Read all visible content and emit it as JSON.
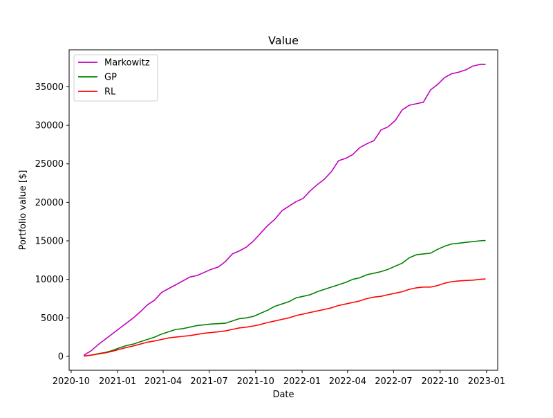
{
  "chart_data": {
    "type": "line",
    "title": "Value",
    "xlabel": "Date",
    "ylabel": "Portfolio value [$]",
    "x_ticks": [
      "2020-10",
      "2021-01",
      "2021-04",
      "2021-07",
      "2021-10",
      "2022-01",
      "2022-04",
      "2022-07",
      "2022-10",
      "2023-01"
    ],
    "y_ticks": [
      0,
      5000,
      10000,
      15000,
      20000,
      25000,
      30000,
      35000
    ],
    "xlim": [
      "2020-09-27",
      "2023-01-23"
    ],
    "ylim": [
      -1800,
      39800
    ],
    "grid": false,
    "legend_position": "top-left",
    "series": [
      {
        "name": "Markowitz",
        "color": "#bf00bf",
        "x": [
          "2020-10-26",
          "2020-11-09",
          "2020-11-23",
          "2020-12-07",
          "2020-12-21",
          "2021-01-04",
          "2021-01-18",
          "2021-02-01",
          "2021-02-15",
          "2021-03-01",
          "2021-03-15",
          "2021-03-29",
          "2021-04-12",
          "2021-04-26",
          "2021-05-10",
          "2021-05-24",
          "2021-06-07",
          "2021-06-21",
          "2021-07-05",
          "2021-07-19",
          "2021-08-02",
          "2021-08-16",
          "2021-08-30",
          "2021-09-13",
          "2021-09-27",
          "2021-10-11",
          "2021-10-25",
          "2021-11-08",
          "2021-11-22",
          "2021-12-06",
          "2021-12-20",
          "2022-01-03",
          "2022-01-17",
          "2022-01-31",
          "2022-02-14",
          "2022-02-28",
          "2022-03-14",
          "2022-03-28",
          "2022-04-11",
          "2022-04-25",
          "2022-05-09",
          "2022-05-23",
          "2022-06-06",
          "2022-06-20",
          "2022-07-04",
          "2022-07-18",
          "2022-08-01",
          "2022-08-15",
          "2022-08-29",
          "2022-09-12",
          "2022-09-26",
          "2022-10-10",
          "2022-10-24",
          "2022-11-07",
          "2022-11-21",
          "2022-12-05",
          "2022-12-19",
          "2022-12-30"
        ],
        "y": [
          150,
          700,
          1500,
          2200,
          2900,
          3600,
          4300,
          5000,
          5800,
          6700,
          7300,
          8300,
          8800,
          9300,
          9800,
          10300,
          10500,
          10900,
          11300,
          11600,
          12300,
          13300,
          13700,
          14200,
          15000,
          16000,
          17000,
          17800,
          18900,
          19500,
          20100,
          20500,
          21500,
          22300,
          23000,
          24000,
          25400,
          25700,
          26200,
          27100,
          27600,
          28000,
          29400,
          29800,
          30600,
          32000,
          32600,
          32800,
          33000,
          34600,
          35300,
          36200,
          36700,
          36900,
          37200,
          37700,
          37900,
          37900
        ]
      },
      {
        "name": "GP",
        "color": "#008000",
        "x": [
          "2020-10-26",
          "2020-11-09",
          "2020-11-23",
          "2020-12-07",
          "2020-12-21",
          "2021-01-04",
          "2021-01-18",
          "2021-02-01",
          "2021-02-15",
          "2021-03-01",
          "2021-03-15",
          "2021-03-29",
          "2021-04-12",
          "2021-04-26",
          "2021-05-10",
          "2021-05-24",
          "2021-06-07",
          "2021-06-21",
          "2021-07-05",
          "2021-07-19",
          "2021-08-02",
          "2021-08-16",
          "2021-08-30",
          "2021-09-13",
          "2021-09-27",
          "2021-10-11",
          "2021-10-25",
          "2021-11-08",
          "2021-11-22",
          "2021-12-06",
          "2021-12-20",
          "2022-01-03",
          "2022-01-17",
          "2022-01-31",
          "2022-02-14",
          "2022-02-28",
          "2022-03-14",
          "2022-03-28",
          "2022-04-11",
          "2022-04-25",
          "2022-05-09",
          "2022-05-23",
          "2022-06-06",
          "2022-06-20",
          "2022-07-04",
          "2022-07-18",
          "2022-08-01",
          "2022-08-15",
          "2022-08-29",
          "2022-09-12",
          "2022-09-26",
          "2022-10-10",
          "2022-10-24",
          "2022-11-07",
          "2022-11-21",
          "2022-12-05",
          "2022-12-19",
          "2022-12-30"
        ],
        "y": [
          50,
          150,
          350,
          500,
          750,
          1100,
          1400,
          1600,
          1900,
          2200,
          2500,
          2900,
          3200,
          3500,
          3600,
          3800,
          4000,
          4100,
          4200,
          4250,
          4300,
          4600,
          4900,
          5000,
          5200,
          5600,
          6000,
          6500,
          6800,
          7100,
          7600,
          7800,
          8000,
          8400,
          8700,
          9000,
          9300,
          9600,
          10000,
          10200,
          10600,
          10800,
          11000,
          11300,
          11700,
          12100,
          12800,
          13200,
          13300,
          13400,
          13900,
          14300,
          14600,
          14700,
          14800,
          14900,
          15000,
          15050
        ]
      },
      {
        "name": "RL",
        "color": "#ff0000",
        "x": [
          "2020-10-26",
          "2020-11-09",
          "2020-11-23",
          "2020-12-07",
          "2020-12-21",
          "2021-01-04",
          "2021-01-18",
          "2021-02-01",
          "2021-02-15",
          "2021-03-01",
          "2021-03-15",
          "2021-03-29",
          "2021-04-12",
          "2021-04-26",
          "2021-05-10",
          "2021-05-24",
          "2021-06-07",
          "2021-06-21",
          "2021-07-05",
          "2021-07-19",
          "2021-08-02",
          "2021-08-16",
          "2021-08-30",
          "2021-09-13",
          "2021-09-27",
          "2021-10-11",
          "2021-10-25",
          "2021-11-08",
          "2021-11-22",
          "2021-12-06",
          "2021-12-20",
          "2022-01-03",
          "2022-01-17",
          "2022-01-31",
          "2022-02-14",
          "2022-02-28",
          "2022-03-14",
          "2022-03-28",
          "2022-04-11",
          "2022-04-25",
          "2022-05-09",
          "2022-05-23",
          "2022-06-06",
          "2022-06-20",
          "2022-07-04",
          "2022-07-18",
          "2022-08-01",
          "2022-08-15",
          "2022-08-29",
          "2022-09-12",
          "2022-09-26",
          "2022-10-10",
          "2022-10-24",
          "2022-11-07",
          "2022-11-21",
          "2022-12-05",
          "2022-12-19",
          "2022-12-30"
        ],
        "y": [
          30,
          150,
          300,
          450,
          650,
          900,
          1150,
          1350,
          1600,
          1850,
          2000,
          2200,
          2400,
          2500,
          2600,
          2700,
          2850,
          3000,
          3100,
          3200,
          3300,
          3500,
          3700,
          3800,
          3950,
          4150,
          4400,
          4600,
          4800,
          5000,
          5300,
          5500,
          5700,
          5900,
          6100,
          6300,
          6600,
          6800,
          7000,
          7200,
          7500,
          7700,
          7800,
          8000,
          8200,
          8400,
          8700,
          8900,
          9000,
          9000,
          9200,
          9500,
          9700,
          9800,
          9850,
          9900,
          10000,
          10050
        ]
      }
    ]
  }
}
